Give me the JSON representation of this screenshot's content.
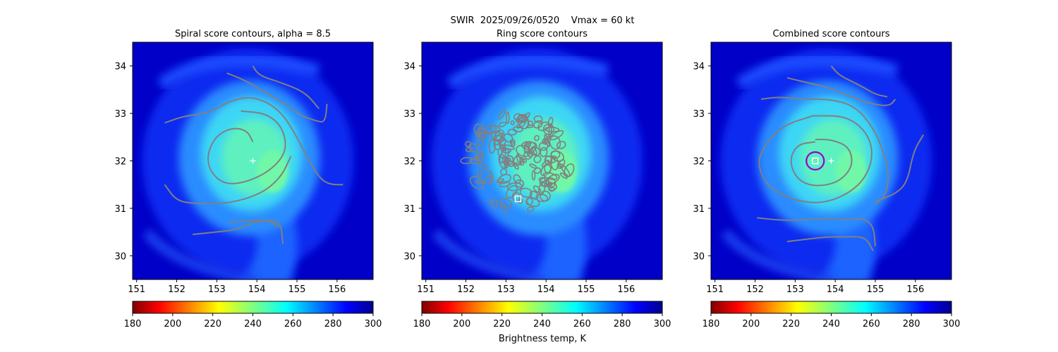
{
  "figure": {
    "suptitle": "SWIR  2025/09/26/0520    Vmax = 60 kt",
    "colorbar_label": "Brightness temp, K"
  },
  "colors": {
    "contour": "#808080",
    "center_marker": "#ffffff",
    "ring_circle": "#9400d3",
    "axis": "#000000"
  },
  "colormap": {
    "name": "jet_r",
    "vmin": 180,
    "vmax": 300,
    "ticks": [
      180,
      200,
      220,
      240,
      260,
      280,
      300
    ]
  },
  "chart_data": [
    {
      "type": "heatmap",
      "title": "Spiral score contours, alpha =  8.5",
      "xlim": [
        150.9,
        156.9
      ],
      "ylim": [
        29.5,
        34.5
      ],
      "xticks": [
        151,
        152,
        153,
        154,
        155,
        156
      ],
      "yticks": [
        30,
        31,
        32,
        33,
        34
      ],
      "markers": [
        {
          "kind": "plus",
          "x": 153.9,
          "y": 32.0
        }
      ],
      "contours": [
        {
          "points": [
            [
              153.25,
              33.85
            ],
            [
              153.7,
              33.7
            ],
            [
              154.2,
              33.45
            ],
            [
              154.7,
              33.2
            ],
            [
              155.1,
              32.95
            ],
            [
              155.45,
              32.85
            ],
            [
              155.7,
              32.8
            ],
            [
              155.75,
              33.2
            ]
          ]
        },
        {
          "points": [
            [
              153.9,
              34.0
            ],
            [
              154.05,
              33.8
            ],
            [
              154.6,
              33.65
            ],
            [
              155.2,
              33.45
            ],
            [
              155.55,
              33.1
            ]
          ]
        },
        {
          "points": [
            [
              151.7,
              32.8
            ],
            [
              152.2,
              32.95
            ],
            [
              152.8,
              33.0
            ],
            [
              153.4,
              33.3
            ],
            [
              154.0,
              33.35
            ],
            [
              154.6,
              33.05
            ],
            [
              155.0,
              32.5
            ],
            [
              155.3,
              32.0
            ],
            [
              155.6,
              31.6
            ],
            [
              155.85,
              31.5
            ],
            [
              156.15,
              31.5
            ]
          ]
        },
        {
          "points": [
            [
              153.9,
              32.4
            ],
            [
              153.75,
              32.65
            ],
            [
              153.35,
              32.7
            ],
            [
              152.95,
              32.5
            ],
            [
              152.75,
              32.1
            ],
            [
              152.85,
              31.75
            ],
            [
              153.2,
              31.5
            ],
            [
              153.75,
              31.55
            ],
            [
              154.35,
              31.8
            ],
            [
              154.75,
              32.2
            ],
            [
              154.65,
              32.7
            ],
            [
              154.25,
              33.0
            ],
            [
              153.6,
              33.05
            ]
          ]
        },
        {
          "points": [
            [
              151.7,
              31.5
            ],
            [
              152.0,
              31.15
            ],
            [
              152.5,
              31.1
            ],
            [
              153.3,
              31.1
            ],
            [
              154.1,
              31.3
            ],
            [
              154.6,
              31.65
            ],
            [
              154.85,
              32.1
            ]
          ]
        },
        {
          "points": [
            [
              152.4,
              30.45
            ],
            [
              153.0,
              30.5
            ],
            [
              153.5,
              30.55
            ],
            [
              153.9,
              30.7
            ],
            [
              154.3,
              30.75
            ],
            [
              154.6,
              30.7
            ],
            [
              154.65,
              30.25
            ]
          ]
        },
        {
          "points": [
            [
              153.3,
              30.7
            ],
            [
              153.8,
              30.75
            ],
            [
              154.3,
              30.75
            ],
            [
              154.55,
              30.6
            ]
          ]
        }
      ]
    },
    {
      "type": "heatmap",
      "title": "Ring score contours",
      "xlim": [
        150.9,
        156.9
      ],
      "ylim": [
        29.5,
        34.5
      ],
      "xticks": [
        151,
        152,
        153,
        154,
        155,
        156
      ],
      "yticks": [
        30,
        31,
        32,
        33,
        34
      ],
      "markers": [
        {
          "kind": "square",
          "x": 153.3,
          "y": 31.2
        }
      ],
      "contour_region": {
        "cx": 153.3,
        "cy": 32.0,
        "rx": 1.35,
        "ry": 1.05
      }
    },
    {
      "type": "heatmap",
      "title": "Combined score contours",
      "xlim": [
        150.9,
        156.9
      ],
      "ylim": [
        29.5,
        34.5
      ],
      "xticks": [
        151,
        152,
        153,
        154,
        155,
        156
      ],
      "yticks": [
        30,
        31,
        32,
        33,
        34
      ],
      "markers": [
        {
          "kind": "square",
          "x": 153.5,
          "y": 32.0
        },
        {
          "kind": "plus",
          "x": 153.9,
          "y": 32.0
        },
        {
          "kind": "circle",
          "x": 153.5,
          "y": 32.0,
          "r": 0.22
        }
      ],
      "contours": [
        {
          "points": [
            [
              152.15,
              33.3
            ],
            [
              152.6,
              33.35
            ],
            [
              153.2,
              33.3
            ],
            [
              153.9,
              33.3
            ],
            [
              154.5,
              33.15
            ],
            [
              154.95,
              32.7
            ],
            [
              155.2,
              32.2
            ],
            [
              155.35,
              31.7
            ],
            [
              155.25,
              31.25
            ],
            [
              155.0,
              31.1
            ]
          ]
        },
        {
          "points": [
            [
              152.8,
              33.75
            ],
            [
              153.3,
              33.65
            ],
            [
              153.8,
              33.55
            ],
            [
              154.4,
              33.35
            ],
            [
              154.9,
              33.2
            ],
            [
              155.35,
              33.15
            ],
            [
              155.5,
              33.3
            ]
          ]
        },
        {
          "points": [
            [
              153.9,
              34.0
            ],
            [
              154.1,
              33.8
            ],
            [
              154.6,
              33.6
            ],
            [
              155.0,
              33.4
            ],
            [
              155.3,
              33.35
            ]
          ]
        },
        {
          "points": [
            [
              153.5,
              32.4
            ],
            [
              153.05,
              32.35
            ],
            [
              152.85,
              32.0
            ],
            [
              153.05,
              31.6
            ],
            [
              153.5,
              31.45
            ],
            [
              154.1,
              31.55
            ],
            [
              154.45,
              31.9
            ],
            [
              154.35,
              32.3
            ],
            [
              153.9,
              32.45
            ],
            [
              153.5,
              32.45
            ]
          ]
        },
        {
          "points": [
            [
              153.45,
              32.95
            ],
            [
              152.7,
              32.75
            ],
            [
              152.25,
              32.35
            ],
            [
              152.05,
              31.95
            ],
            [
              152.3,
              31.45
            ],
            [
              153.0,
              31.15
            ],
            [
              153.8,
              31.1
            ],
            [
              154.6,
              31.45
            ],
            [
              154.95,
              32.0
            ],
            [
              154.85,
              32.55
            ],
            [
              154.3,
              32.95
            ],
            [
              153.45,
              32.95
            ]
          ]
        },
        {
          "points": [
            [
              152.05,
              30.8
            ],
            [
              152.6,
              30.75
            ],
            [
              153.2,
              30.75
            ],
            [
              153.8,
              30.8
            ],
            [
              154.3,
              30.75
            ],
            [
              154.65,
              30.8
            ],
            [
              154.95,
              30.65
            ],
            [
              155.0,
              30.2
            ]
          ]
        },
        {
          "points": [
            [
              152.8,
              30.3
            ],
            [
              153.3,
              30.35
            ],
            [
              153.8,
              30.4
            ],
            [
              154.3,
              30.4
            ],
            [
              154.75,
              30.4
            ],
            [
              154.95,
              30.1
            ]
          ]
        },
        {
          "points": [
            [
              155.0,
              31.15
            ],
            [
              155.5,
              31.3
            ],
            [
              155.8,
              31.55
            ],
            [
              155.95,
              32.2
            ],
            [
              156.2,
              32.55
            ]
          ]
        }
      ]
    }
  ]
}
